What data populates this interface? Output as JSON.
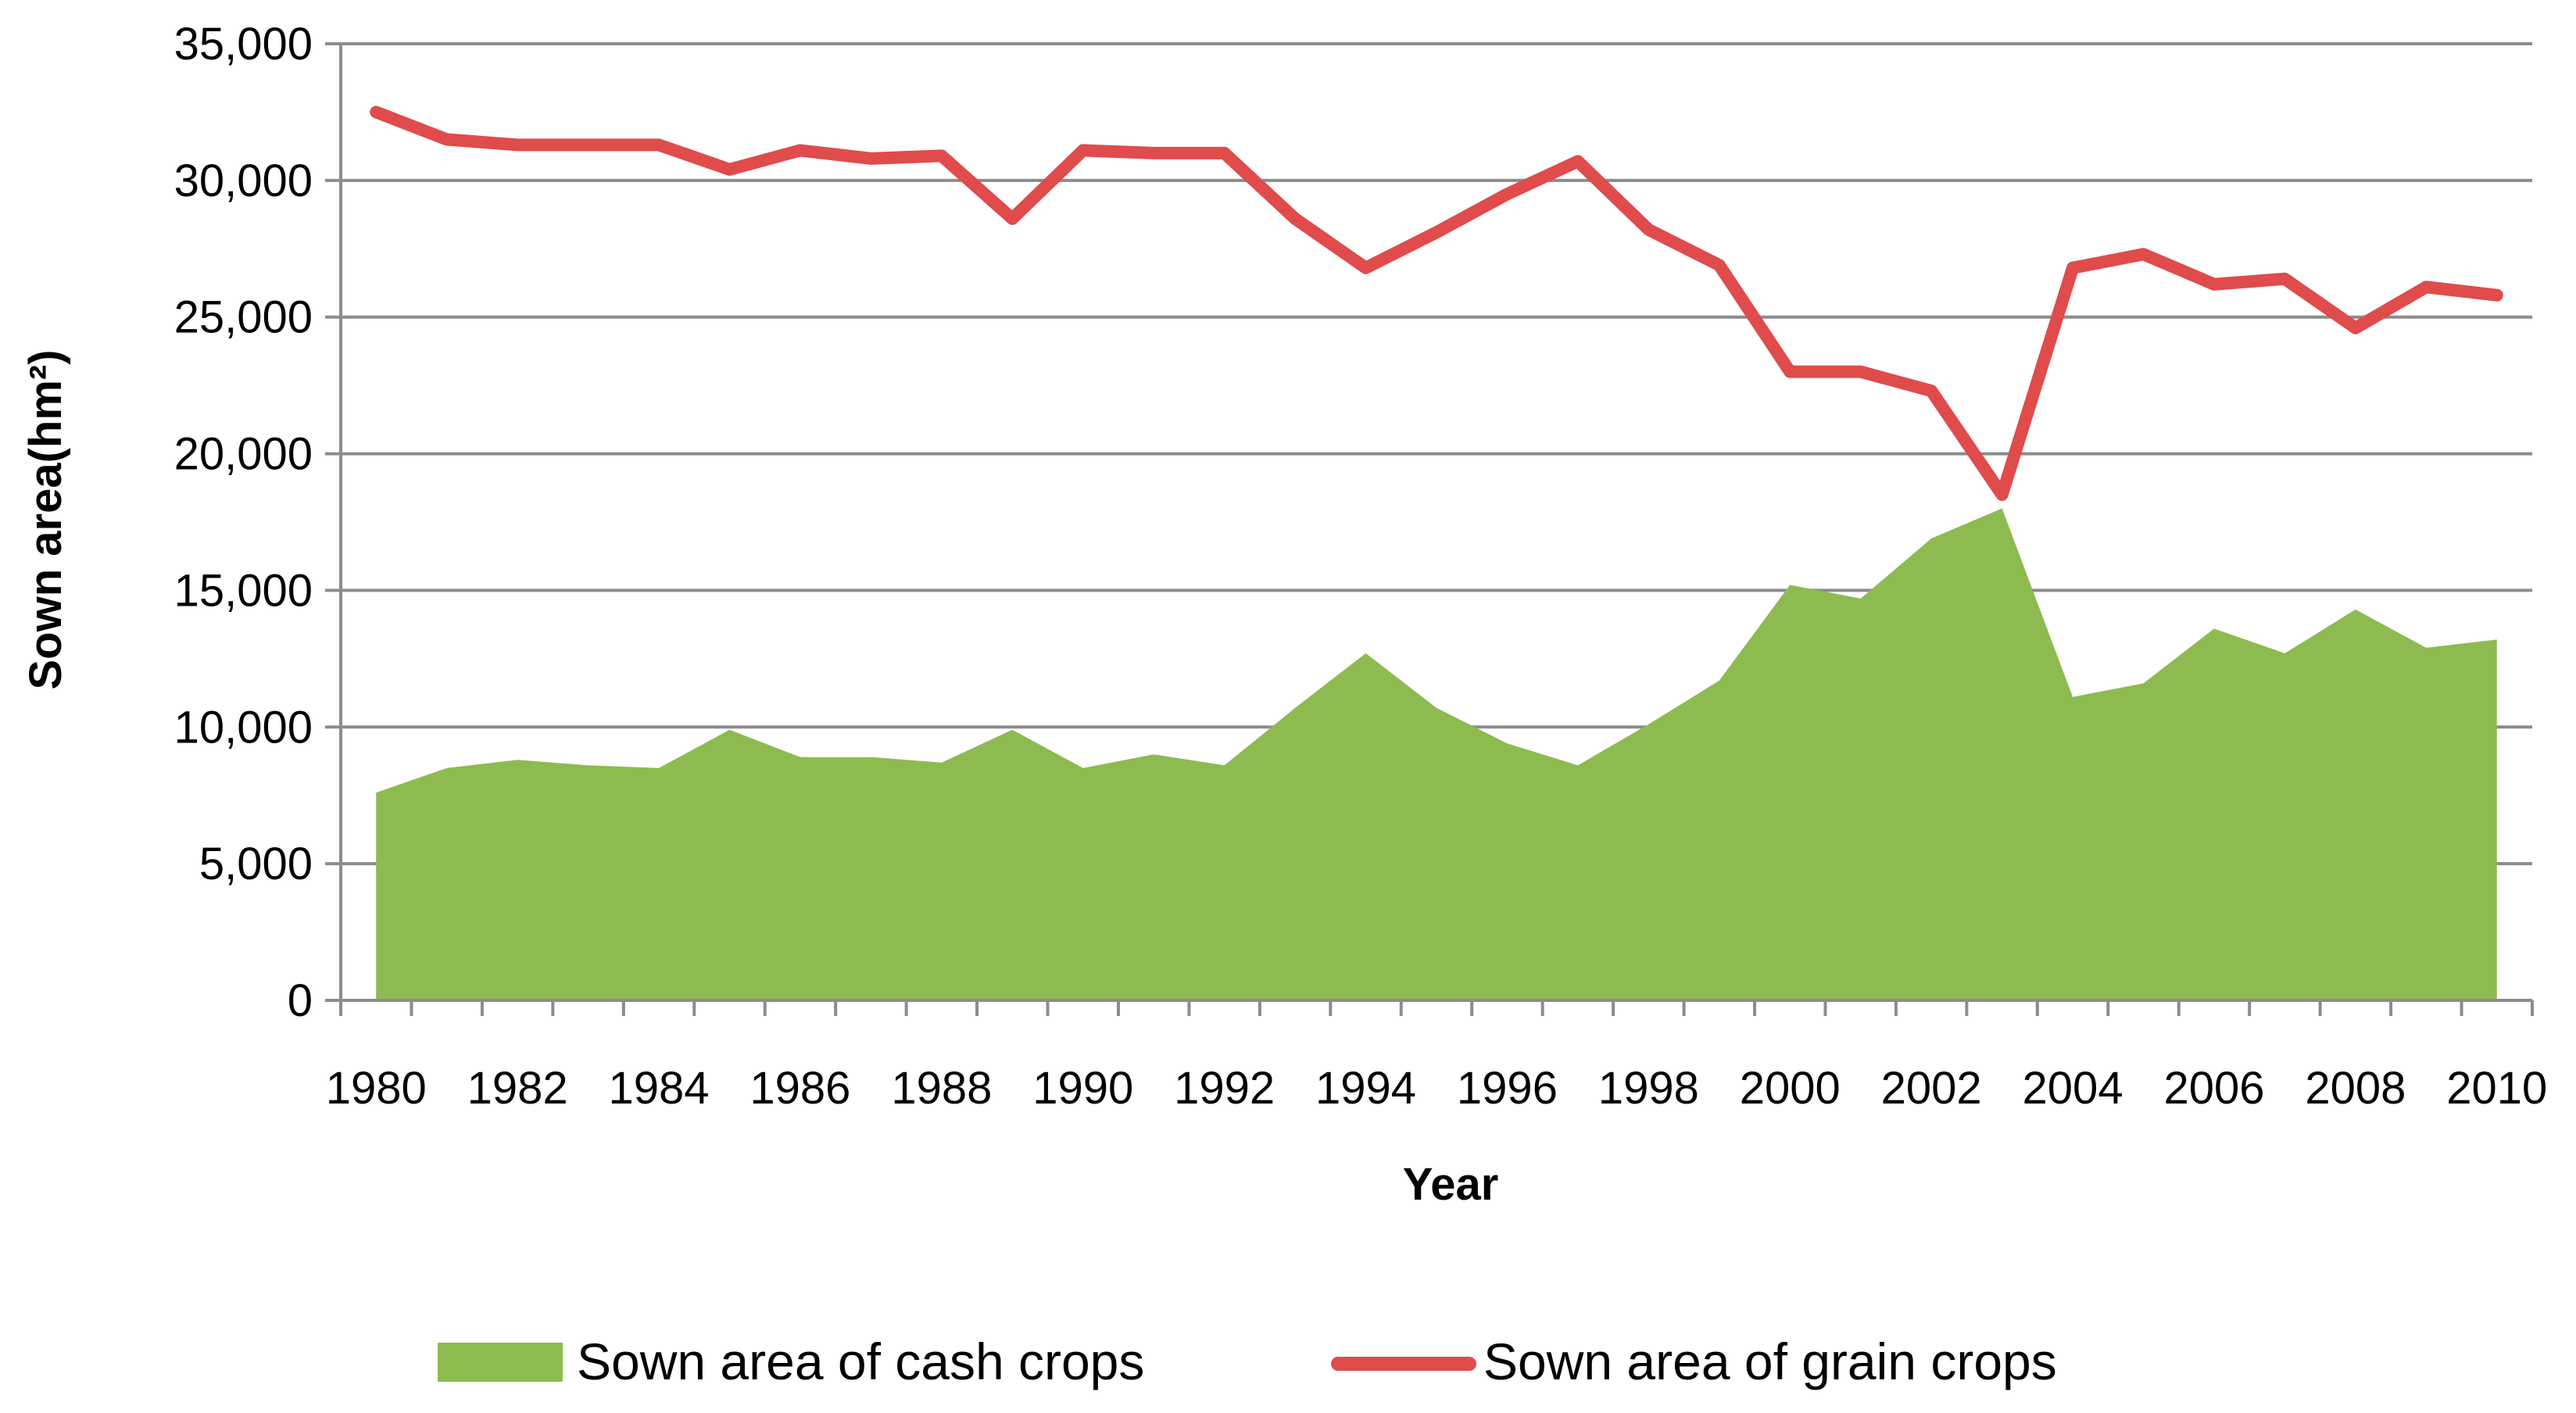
{
  "chart_data": {
    "type": "area+line",
    "xlabel": "Year",
    "ylabel": "Sown area(hm²)",
    "ylim": [
      0,
      35000
    ],
    "yticks": [
      0,
      5000,
      10000,
      15000,
      20000,
      25000,
      30000,
      35000
    ],
    "ytick_labels": [
      "0",
      "5,000",
      "10,000",
      "15,000",
      "20,000",
      "25,000",
      "30,000",
      "35,000"
    ],
    "xtick_labels": [
      "1980",
      "1982",
      "1984",
      "1986",
      "1988",
      "1990",
      "1992",
      "1994",
      "1996",
      "1998",
      "2000",
      "2002",
      "2004",
      "2006",
      "2008",
      "2010"
    ],
    "grid": true,
    "legend_position": "bottom",
    "x": [
      1980,
      1981,
      1982,
      1983,
      1984,
      1985,
      1986,
      1987,
      1988,
      1989,
      1990,
      1991,
      1992,
      1993,
      1994,
      1995,
      1996,
      1997,
      1998,
      1999,
      2000,
      2001,
      2002,
      2003,
      2004,
      2005,
      2006,
      2007,
      2008,
      2009,
      2010
    ],
    "series": [
      {
        "name": "Sown area of cash crops",
        "kind": "area",
        "color": "#8DBB50",
        "values": [
          7600,
          8500,
          8800,
          8600,
          8500,
          9900,
          8900,
          8900,
          8700,
          9900,
          8500,
          9000,
          8600,
          10700,
          12700,
          10700,
          9400,
          8600,
          10100,
          11700,
          15200,
          14700,
          16900,
          18000,
          11100,
          11600,
          13600,
          12700,
          14300,
          12900,
          13200
        ]
      },
      {
        "name": "Sown area of grain crops",
        "kind": "line",
        "color": "#E04B4B",
        "values": [
          32500,
          31500,
          31300,
          31300,
          31300,
          30400,
          31100,
          30800,
          30900,
          28600,
          31100,
          31000,
          31000,
          28600,
          26800,
          28100,
          29500,
          30700,
          28200,
          26900,
          23000,
          23000,
          22300,
          18500,
          26800,
          27300,
          26200,
          26400,
          24600,
          26100,
          25800
        ]
      }
    ]
  }
}
